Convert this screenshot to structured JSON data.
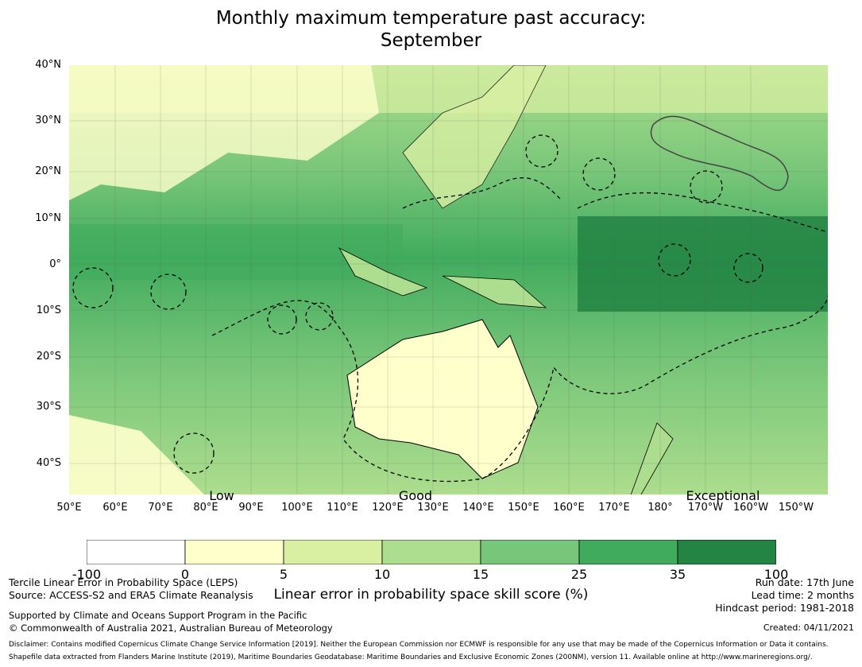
{
  "title": {
    "line1": "Monthly maximum temperature past accuracy:",
    "line2": "September"
  },
  "map": {
    "lat_labels": [
      "40°N",
      "30°N",
      "20°N",
      "10°N",
      "0°",
      "10°S",
      "20°S",
      "30°S",
      "40°S"
    ],
    "lon_labels": [
      "50°E",
      "60°E",
      "70°E",
      "80°E",
      "90°E",
      "100°E",
      "110°E",
      "120°E",
      "130°E",
      "140°E",
      "150°E",
      "160°E",
      "170°E",
      "180°",
      "170°W",
      "160°W",
      "150°W"
    ],
    "scale_words": [
      "Low",
      "Good",
      "Exceptional"
    ]
  },
  "colorbar": {
    "ticks": [
      "-100",
      "0",
      "5",
      "10",
      "15",
      "25",
      "35",
      "100"
    ],
    "colors": [
      "#ffffff",
      "#ffffcc",
      "#d9f0a3",
      "#addd8e",
      "#78c679",
      "#41ab5d",
      "#238443"
    ],
    "label": "Linear error in probability space skill score (%)"
  },
  "footer": {
    "method": "Tercile Linear Error in Probability Space (LEPS)",
    "source": "Source: ACCESS-S2 and ERA5 Climate Reanalysis",
    "support": "Supported by Climate and Oceans Support Program in the Pacific",
    "copyright": "© Commonwealth of Australia 2021, Australian Bureau of Meteorology",
    "run_date": "Run date: 17th June",
    "lead_time": "Lead time: 2 months",
    "hindcast": "Hindcast period: 1981-2018",
    "created": "Created: 04/11/2021",
    "disclaimer": "Disclaimer: Contains modified Copernicus Climate Change Service Information [2019]. Neither the European Commission nor ECMWF is responsible for any use that may be made of the Copernicus Information or Data it contains.",
    "shapefile": "Shapefile data extracted from Flanders Marine Institute (2019), Maritime Boundaries Geodatabase: Maritime Boundaries and Exclusive Economic Zones (200NM), version 11. Available online at http://www.marineregions.org/."
  }
}
